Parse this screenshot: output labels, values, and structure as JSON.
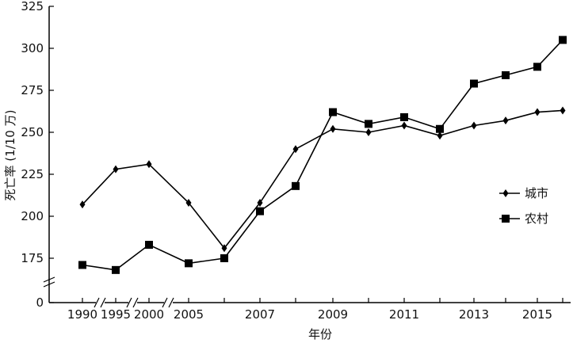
{
  "chart_data": {
    "type": "line",
    "xlabel": "年份",
    "ylabel": "死亡率 (1/10 万)",
    "x": [
      "1990",
      "1995",
      "2000",
      "2005",
      "2006",
      "2007",
      "2008",
      "2009",
      "2010",
      "2011",
      "2012",
      "2013",
      "2014",
      "2015",
      "2016"
    ],
    "x_tick_labels": [
      "1990",
      "1995",
      "2000",
      "2005",
      "2007",
      "2009",
      "2011",
      "2013",
      "2015"
    ],
    "yticks": [
      "0",
      "175",
      "200",
      "225",
      "250",
      "275",
      "300",
      "325"
    ],
    "ylim": [
      150,
      325
    ],
    "y_axis_break": true,
    "x_axis_breaks": [
      "1990-1995",
      "1995-2000",
      "2000-2005"
    ],
    "grid": false,
    "legend_position": "right",
    "series": [
      {
        "name": "城市",
        "marker": "diamond",
        "values": [
          207,
          228,
          231,
          208,
          181,
          208,
          240,
          252,
          250,
          254,
          248,
          254,
          257,
          262,
          263
        ]
      },
      {
        "name": "农村",
        "marker": "square",
        "values": [
          171,
          168,
          183,
          172,
          175,
          203,
          218,
          262,
          255,
          259,
          252,
          279,
          284,
          289,
          305
        ]
      }
    ]
  }
}
